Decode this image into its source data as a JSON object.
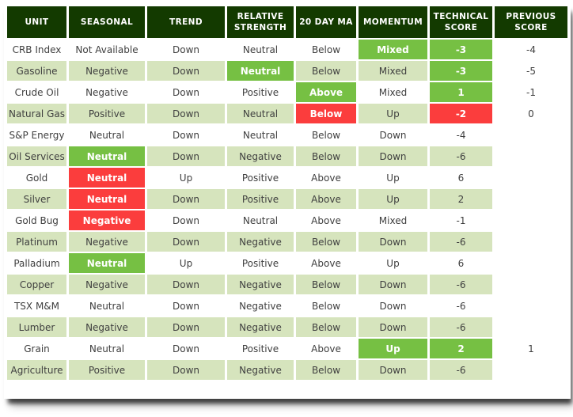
{
  "colors": {
    "header_bg": "#133A00",
    "row_band": "#D6E4BD",
    "highlight_green": "#76C043",
    "highlight_red": "#FB3D3D",
    "header_text": "#FFFFFF",
    "body_text": "#3F3F3F"
  },
  "chart_data": {
    "type": "table",
    "columns": [
      "UNIT",
      "SEASONAL",
      "TREND",
      "RELATIVE STRENGTH",
      "20 DAY MA",
      "MOMENTUM",
      "TECHNICAL SCORE",
      "PREVIOUS SCORE"
    ],
    "rows": [
      {
        "cells": [
          {
            "text": "CRB Index"
          },
          {
            "text": "Not Available"
          },
          {
            "text": "Down"
          },
          {
            "text": "Neutral"
          },
          {
            "text": "Below"
          },
          {
            "text": "Mixed",
            "hl": "green"
          },
          {
            "text": "-3",
            "hl": "green"
          },
          {
            "text": "-4"
          }
        ]
      },
      {
        "cells": [
          {
            "text": "Gasoline"
          },
          {
            "text": "Negative"
          },
          {
            "text": "Down"
          },
          {
            "text": "Neutral",
            "hl": "green"
          },
          {
            "text": "Below"
          },
          {
            "text": "Mixed"
          },
          {
            "text": "-3",
            "hl": "green"
          },
          {
            "text": "-5"
          }
        ]
      },
      {
        "cells": [
          {
            "text": "Crude Oil"
          },
          {
            "text": "Negative"
          },
          {
            "text": "Down"
          },
          {
            "text": "Positive"
          },
          {
            "text": "Above",
            "hl": "green"
          },
          {
            "text": "Mixed"
          },
          {
            "text": "1",
            "hl": "green"
          },
          {
            "text": "-1"
          }
        ]
      },
      {
        "cells": [
          {
            "text": "Natural Gas"
          },
          {
            "text": "Positive"
          },
          {
            "text": "Down"
          },
          {
            "text": "Neutral"
          },
          {
            "text": "Below",
            "hl": "red"
          },
          {
            "text": "Up"
          },
          {
            "text": "-2",
            "hl": "red"
          },
          {
            "text": "0"
          }
        ]
      },
      {
        "cells": [
          {
            "text": "S&P Energy"
          },
          {
            "text": "Neutral"
          },
          {
            "text": "Down"
          },
          {
            "text": "Neutral"
          },
          {
            "text": "Below"
          },
          {
            "text": "Down"
          },
          {
            "text": "-4"
          },
          {
            "text": ""
          }
        ]
      },
      {
        "cells": [
          {
            "text": "Oil Services"
          },
          {
            "text": "Neutral",
            "hl": "green"
          },
          {
            "text": "Down"
          },
          {
            "text": "Negative"
          },
          {
            "text": "Below"
          },
          {
            "text": "Down"
          },
          {
            "text": "-6"
          },
          {
            "text": ""
          }
        ]
      },
      {
        "cells": [
          {
            "text": "Gold"
          },
          {
            "text": "Neutral",
            "hl": "red"
          },
          {
            "text": "Up"
          },
          {
            "text": "Positive"
          },
          {
            "text": "Above"
          },
          {
            "text": "Up"
          },
          {
            "text": "6"
          },
          {
            "text": ""
          }
        ]
      },
      {
        "cells": [
          {
            "text": "Silver"
          },
          {
            "text": "Neutral",
            "hl": "red"
          },
          {
            "text": "Down"
          },
          {
            "text": "Positive"
          },
          {
            "text": "Above"
          },
          {
            "text": "Up"
          },
          {
            "text": "2"
          },
          {
            "text": ""
          }
        ]
      },
      {
        "cells": [
          {
            "text": "Gold Bug"
          },
          {
            "text": "Negative",
            "hl": "red"
          },
          {
            "text": "Down"
          },
          {
            "text": "Neutral"
          },
          {
            "text": "Above"
          },
          {
            "text": "Mixed"
          },
          {
            "text": "-1"
          },
          {
            "text": ""
          }
        ]
      },
      {
        "cells": [
          {
            "text": "Platinum"
          },
          {
            "text": "Negative"
          },
          {
            "text": "Down"
          },
          {
            "text": "Negative"
          },
          {
            "text": "Below"
          },
          {
            "text": "Down"
          },
          {
            "text": "-6"
          },
          {
            "text": ""
          }
        ]
      },
      {
        "cells": [
          {
            "text": "Palladium"
          },
          {
            "text": "Neutral",
            "hl": "green"
          },
          {
            "text": "Up"
          },
          {
            "text": "Positive"
          },
          {
            "text": "Above"
          },
          {
            "text": "Up"
          },
          {
            "text": "6"
          },
          {
            "text": ""
          }
        ]
      },
      {
        "cells": [
          {
            "text": "Copper"
          },
          {
            "text": "Negative"
          },
          {
            "text": "Down"
          },
          {
            "text": "Negative"
          },
          {
            "text": "Below"
          },
          {
            "text": "Down"
          },
          {
            "text": "-6"
          },
          {
            "text": ""
          }
        ]
      },
      {
        "cells": [
          {
            "text": "TSX M&M"
          },
          {
            "text": "Neutral"
          },
          {
            "text": "Down"
          },
          {
            "text": "Negative"
          },
          {
            "text": "Below"
          },
          {
            "text": "Down"
          },
          {
            "text": "-6"
          },
          {
            "text": ""
          }
        ]
      },
      {
        "cells": [
          {
            "text": "Lumber"
          },
          {
            "text": "Negative"
          },
          {
            "text": "Down"
          },
          {
            "text": "Negative"
          },
          {
            "text": "Below"
          },
          {
            "text": "Down"
          },
          {
            "text": "-6"
          },
          {
            "text": ""
          }
        ]
      },
      {
        "cells": [
          {
            "text": "Grain"
          },
          {
            "text": "Neutral"
          },
          {
            "text": "Down"
          },
          {
            "text": "Positive"
          },
          {
            "text": "Above"
          },
          {
            "text": "Up",
            "hl": "green"
          },
          {
            "text": "2",
            "hl": "green"
          },
          {
            "text": "1"
          }
        ]
      },
      {
        "cells": [
          {
            "text": "Agriculture"
          },
          {
            "text": "Positive"
          },
          {
            "text": "Down"
          },
          {
            "text": "Negative"
          },
          {
            "text": "Below"
          },
          {
            "text": "Down"
          },
          {
            "text": "-6"
          },
          {
            "text": ""
          }
        ]
      }
    ]
  }
}
